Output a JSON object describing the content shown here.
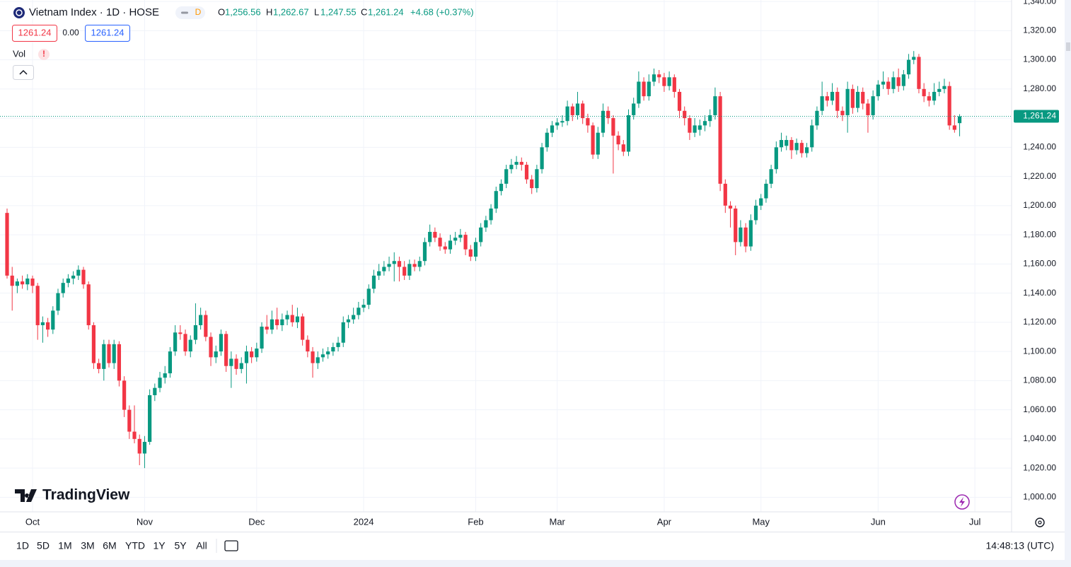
{
  "header": {
    "symbol": "Vietnam Index · 1D · HOSE",
    "badge": "D",
    "o_label": "O",
    "o": "1,256.56",
    "h_label": "H",
    "h": "1,262.67",
    "l_label": "L",
    "l": "1,247.55",
    "c_label": "C",
    "c": "1,261.24",
    "change": "+4.68 (+0.37%)",
    "bid": "1261.24",
    "spread": "0.00",
    "ask": "1261.24",
    "vol": "Vol",
    "alert": "!"
  },
  "logo": "TradingView",
  "ranges": [
    "1D",
    "5D",
    "1M",
    "3M",
    "6M",
    "YTD",
    "1Y",
    "5Y",
    "All"
  ],
  "clock": "14:48:13 (UTC)",
  "chart_data": {
    "type": "candlestick",
    "up_color": "#089981",
    "down_color": "#f23645",
    "grid": true,
    "xlim": [
      0,
      197.2
    ],
    "ylim": [
      990,
      1341
    ],
    "xticks": [
      {
        "value": 5,
        "label": "Oct"
      },
      {
        "value": 27,
        "label": "Nov"
      },
      {
        "value": 49,
        "label": "Dec"
      },
      {
        "value": 70,
        "label": "2024"
      },
      {
        "value": 92,
        "label": "Feb"
      },
      {
        "value": 108,
        "label": "Mar"
      },
      {
        "value": 129,
        "label": "Apr"
      },
      {
        "value": 148,
        "label": "May"
      },
      {
        "value": 171,
        "label": "Jun"
      },
      {
        "value": 190,
        "label": "Jul"
      }
    ],
    "yticks": [
      {
        "value": 1000,
        "label": "1,000.00"
      },
      {
        "value": 1020,
        "label": "1,020.00"
      },
      {
        "value": 1040,
        "label": "1,040.00"
      },
      {
        "value": 1060,
        "label": "1,060.00"
      },
      {
        "value": 1080,
        "label": "1,080.00"
      },
      {
        "value": 1100,
        "label": "1,100.00"
      },
      {
        "value": 1120,
        "label": "1,120.00"
      },
      {
        "value": 1140,
        "label": "1,140.00"
      },
      {
        "value": 1160,
        "label": "1,160.00"
      },
      {
        "value": 1180,
        "label": "1,180.00"
      },
      {
        "value": 1200,
        "label": "1,200.00"
      },
      {
        "value": 1220,
        "label": "1,220.00"
      },
      {
        "value": 1240,
        "label": "1,240.00"
      },
      {
        "value": 1260,
        "label": "1,260.00"
      },
      {
        "value": 1280,
        "label": "1,280.00"
      },
      {
        "value": 1300,
        "label": "1,300.00"
      },
      {
        "value": 1320,
        "label": "1,320.00"
      },
      {
        "value": 1340,
        "label": "1,340.00"
      }
    ],
    "last_price": {
      "value": 1261.24,
      "label": "1,261.24"
    },
    "ohlc": [
      [
        1195,
        1198,
        1150,
        1152
      ],
      [
        1152,
        1158,
        1128,
        1145
      ],
      [
        1145,
        1150,
        1140,
        1148
      ],
      [
        1148,
        1152,
        1143,
        1146
      ],
      [
        1146,
        1153,
        1142,
        1150
      ],
      [
        1150,
        1152,
        1140,
        1145
      ],
      [
        1145,
        1147,
        1108,
        1118
      ],
      [
        1118,
        1124,
        1106,
        1120
      ],
      [
        1120,
        1123,
        1110,
        1115
      ],
      [
        1115,
        1131,
        1112,
        1128
      ],
      [
        1128,
        1143,
        1125,
        1140
      ],
      [
        1140,
        1150,
        1137,
        1147
      ],
      [
        1147,
        1153,
        1144,
        1150
      ],
      [
        1150,
        1155,
        1146,
        1152
      ],
      [
        1152,
        1159,
        1149,
        1156
      ],
      [
        1156,
        1158,
        1143,
        1146
      ],
      [
        1146,
        1148,
        1115,
        1118
      ],
      [
        1118,
        1120,
        1088,
        1092
      ],
      [
        1092,
        1095,
        1085,
        1088
      ],
      [
        1088,
        1108,
        1080,
        1105
      ],
      [
        1105,
        1108,
        1089,
        1092
      ],
      [
        1092,
        1108,
        1088,
        1105
      ],
      [
        1105,
        1107,
        1076,
        1080
      ],
      [
        1080,
        1083,
        1055,
        1060
      ],
      [
        1060,
        1063,
        1040,
        1045
      ],
      [
        1045,
        1063,
        1037,
        1040
      ],
      [
        1040,
        1043,
        1022,
        1030
      ],
      [
        1030,
        1042,
        1020,
        1038
      ],
      [
        1038,
        1074,
        1036,
        1070
      ],
      [
        1070,
        1078,
        1066,
        1075
      ],
      [
        1075,
        1086,
        1072,
        1082
      ],
      [
        1082,
        1090,
        1078,
        1085
      ],
      [
        1085,
        1103,
        1082,
        1100
      ],
      [
        1100,
        1118,
        1097,
        1113
      ],
      [
        1113,
        1118,
        1108,
        1112
      ],
      [
        1112,
        1115,
        1097,
        1100
      ],
      [
        1100,
        1111,
        1096,
        1108
      ],
      [
        1108,
        1133,
        1105,
        1118
      ],
      [
        1118,
        1130,
        1115,
        1125
      ],
      [
        1125,
        1128,
        1107,
        1110
      ],
      [
        1110,
        1113,
        1090,
        1096
      ],
      [
        1096,
        1104,
        1092,
        1100
      ],
      [
        1100,
        1115,
        1097,
        1112
      ],
      [
        1112,
        1114,
        1086,
        1090
      ],
      [
        1090,
        1100,
        1075,
        1095
      ],
      [
        1095,
        1098,
        1084,
        1088
      ],
      [
        1088,
        1096,
        1085,
        1092
      ],
      [
        1092,
        1104,
        1078,
        1100
      ],
      [
        1100,
        1103,
        1092,
        1096
      ],
      [
        1096,
        1106,
        1093,
        1102
      ],
      [
        1102,
        1120,
        1099,
        1117
      ],
      [
        1117,
        1125,
        1112,
        1115
      ],
      [
        1115,
        1128,
        1112,
        1122
      ],
      [
        1122,
        1130,
        1115,
        1118
      ],
      [
        1118,
        1126,
        1114,
        1122
      ],
      [
        1122,
        1128,
        1118,
        1125
      ],
      [
        1125,
        1132,
        1117,
        1120
      ],
      [
        1120,
        1130,
        1116,
        1124
      ],
      [
        1124,
        1126,
        1104,
        1108
      ],
      [
        1108,
        1111,
        1096,
        1100
      ],
      [
        1100,
        1103,
        1082,
        1092
      ],
      [
        1092,
        1100,
        1088,
        1096
      ],
      [
        1096,
        1102,
        1093,
        1098
      ],
      [
        1098,
        1103,
        1095,
        1100
      ],
      [
        1100,
        1106,
        1097,
        1103
      ],
      [
        1103,
        1110,
        1100,
        1106
      ],
      [
        1106,
        1124,
        1103,
        1120
      ],
      [
        1120,
        1125,
        1116,
        1122
      ],
      [
        1122,
        1130,
        1119,
        1125
      ],
      [
        1125,
        1134,
        1122,
        1130
      ],
      [
        1130,
        1136,
        1127,
        1132
      ],
      [
        1132,
        1146,
        1129,
        1143
      ],
      [
        1143,
        1156,
        1140,
        1152
      ],
      [
        1152,
        1160,
        1149,
        1155
      ],
      [
        1155,
        1162,
        1152,
        1158
      ],
      [
        1158,
        1165,
        1155,
        1160
      ],
      [
        1160,
        1168,
        1148,
        1162
      ],
      [
        1162,
        1165,
        1148,
        1158
      ],
      [
        1158,
        1162,
        1149,
        1152
      ],
      [
        1152,
        1163,
        1149,
        1160
      ],
      [
        1160,
        1163,
        1155,
        1158
      ],
      [
        1158,
        1165,
        1155,
        1162
      ],
      [
        1162,
        1178,
        1159,
        1175
      ],
      [
        1175,
        1187,
        1172,
        1182
      ],
      [
        1182,
        1185,
        1175,
        1178
      ],
      [
        1178,
        1181,
        1169,
        1172
      ],
      [
        1172,
        1175,
        1167,
        1170
      ],
      [
        1170,
        1180,
        1167,
        1176
      ],
      [
        1176,
        1182,
        1173,
        1178
      ],
      [
        1178,
        1184,
        1175,
        1180
      ],
      [
        1180,
        1182,
        1166,
        1170
      ],
      [
        1170,
        1173,
        1162,
        1165
      ],
      [
        1165,
        1178,
        1162,
        1175
      ],
      [
        1175,
        1188,
        1172,
        1185
      ],
      [
        1185,
        1193,
        1182,
        1190
      ],
      [
        1190,
        1201,
        1187,
        1198
      ],
      [
        1198,
        1213,
        1195,
        1210
      ],
      [
        1210,
        1218,
        1207,
        1215
      ],
      [
        1215,
        1228,
        1212,
        1225
      ],
      [
        1225,
        1232,
        1222,
        1228
      ],
      [
        1228,
        1234,
        1225,
        1230
      ],
      [
        1230,
        1233,
        1224,
        1228
      ],
      [
        1228,
        1230,
        1215,
        1218
      ],
      [
        1218,
        1221,
        1208,
        1212
      ],
      [
        1212,
        1228,
        1209,
        1225
      ],
      [
        1225,
        1243,
        1222,
        1240
      ],
      [
        1240,
        1253,
        1237,
        1250
      ],
      [
        1250,
        1258,
        1247,
        1255
      ],
      [
        1255,
        1260,
        1252,
        1257
      ],
      [
        1257,
        1262,
        1254,
        1258
      ],
      [
        1258,
        1272,
        1255,
        1268
      ],
      [
        1268,
        1270,
        1258,
        1262
      ],
      [
        1262,
        1278,
        1259,
        1270
      ],
      [
        1270,
        1272,
        1256,
        1260
      ],
      [
        1260,
        1263,
        1250,
        1255
      ],
      [
        1255,
        1257,
        1232,
        1235
      ],
      [
        1235,
        1254,
        1232,
        1250
      ],
      [
        1250,
        1270,
        1247,
        1265
      ],
      [
        1265,
        1268,
        1256,
        1260
      ],
      [
        1260,
        1262,
        1222,
        1248
      ],
      [
        1248,
        1251,
        1238,
        1242
      ],
      [
        1242,
        1245,
        1234,
        1237
      ],
      [
        1237,
        1266,
        1234,
        1262
      ],
      [
        1262,
        1274,
        1259,
        1270
      ],
      [
        1270,
        1292,
        1267,
        1285
      ],
      [
        1285,
        1288,
        1272,
        1275
      ],
      [
        1275,
        1290,
        1272,
        1285
      ],
      [
        1285,
        1294,
        1282,
        1290
      ],
      [
        1290,
        1293,
        1284,
        1288
      ],
      [
        1288,
        1291,
        1278,
        1282
      ],
      [
        1282,
        1292,
        1279,
        1288
      ],
      [
        1288,
        1290,
        1274,
        1278
      ],
      [
        1278,
        1280,
        1260,
        1265
      ],
      [
        1265,
        1268,
        1255,
        1260
      ],
      [
        1260,
        1262,
        1245,
        1250
      ],
      [
        1250,
        1260,
        1247,
        1255
      ],
      [
        1252,
        1259,
        1248,
        1255
      ],
      [
        1255,
        1262,
        1251,
        1258
      ],
      [
        1258,
        1266,
        1254,
        1262
      ],
      [
        1262,
        1281,
        1259,
        1275
      ],
      [
        1275,
        1278,
        1210,
        1215
      ],
      [
        1215,
        1218,
        1195,
        1200
      ],
      [
        1200,
        1203,
        1185,
        1198
      ],
      [
        1198,
        1200,
        1166,
        1175
      ],
      [
        1175,
        1190,
        1172,
        1185
      ],
      [
        1185,
        1188,
        1168,
        1172
      ],
      [
        1172,
        1194,
        1169,
        1190
      ],
      [
        1190,
        1204,
        1187,
        1200
      ],
      [
        1200,
        1208,
        1197,
        1205
      ],
      [
        1205,
        1218,
        1202,
        1215
      ],
      [
        1215,
        1228,
        1212,
        1225
      ],
      [
        1225,
        1244,
        1222,
        1240
      ],
      [
        1240,
        1250,
        1237,
        1245
      ],
      [
        1241,
        1248,
        1238,
        1245
      ],
      [
        1245,
        1247,
        1232,
        1238
      ],
      [
        1238,
        1246,
        1235,
        1243
      ],
      [
        1243,
        1245,
        1233,
        1236
      ],
      [
        1236,
        1243,
        1233,
        1240
      ],
      [
        1240,
        1259,
        1237,
        1255
      ],
      [
        1255,
        1268,
        1252,
        1265
      ],
      [
        1265,
        1285,
        1262,
        1275
      ],
      [
        1275,
        1278,
        1268,
        1272
      ],
      [
        1272,
        1284,
        1269,
        1278
      ],
      [
        1278,
        1281,
        1260,
        1265
      ],
      [
        1265,
        1268,
        1258,
        1262
      ],
      [
        1262,
        1285,
        1250,
        1280
      ],
      [
        1280,
        1283,
        1263,
        1267
      ],
      [
        1267,
        1282,
        1264,
        1278
      ],
      [
        1278,
        1281,
        1266,
        1270
      ],
      [
        1270,
        1273,
        1250,
        1262
      ],
      [
        1262,
        1279,
        1259,
        1275
      ],
      [
        1275,
        1286,
        1272,
        1283
      ],
      [
        1283,
        1292,
        1280,
        1285
      ],
      [
        1285,
        1288,
        1276,
        1280
      ],
      [
        1280,
        1292,
        1277,
        1288
      ],
      [
        1288,
        1294,
        1278,
        1282
      ],
      [
        1282,
        1293,
        1279,
        1290
      ],
      [
        1290,
        1304,
        1287,
        1300
      ],
      [
        1300,
        1306,
        1297,
        1302
      ],
      [
        1302,
        1304,
        1277,
        1280
      ],
      [
        1280,
        1284,
        1271,
        1275
      ],
      [
        1275,
        1278,
        1268,
        1272
      ],
      [
        1272,
        1284,
        1269,
        1278
      ],
      [
        1278,
        1285,
        1275,
        1280
      ],
      [
        1280,
        1287,
        1277,
        1282
      ],
      [
        1282,
        1285,
        1252,
        1255
      ],
      [
        1255,
        1262,
        1250,
        1252
      ],
      [
        1256.56,
        1262.67,
        1247.55,
        1261.24
      ]
    ]
  }
}
